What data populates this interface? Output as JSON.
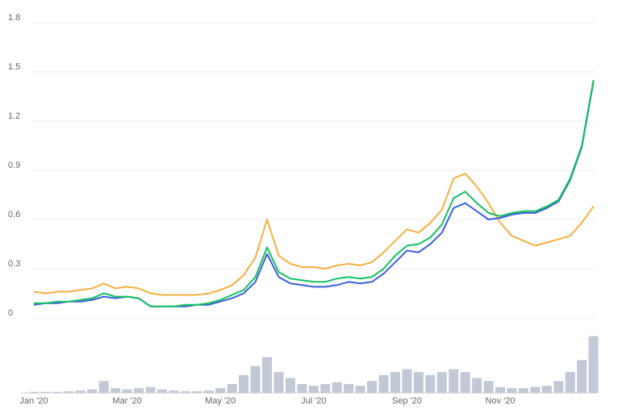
{
  "chart_data": {
    "type": "line",
    "categories": [
      "Jan '20",
      null,
      null,
      null,
      null,
      null,
      null,
      null,
      "Mar '20",
      null,
      null,
      null,
      null,
      null,
      null,
      null,
      "May '20",
      null,
      null,
      null,
      null,
      null,
      null,
      null,
      "Jul '20",
      null,
      null,
      null,
      null,
      null,
      null,
      null,
      "Sep '20",
      null,
      null,
      null,
      null,
      null,
      null,
      null,
      "Nov '20",
      null,
      null,
      null,
      null,
      null,
      null,
      null,
      null
    ],
    "series": [
      {
        "color": "#f5b041",
        "values": [
          0.16,
          0.15,
          0.16,
          0.16,
          0.17,
          0.18,
          0.21,
          0.18,
          0.19,
          0.18,
          0.15,
          0.14,
          0.14,
          0.14,
          0.14,
          0.15,
          0.17,
          0.2,
          0.26,
          0.37,
          0.6,
          0.38,
          0.33,
          0.31,
          0.31,
          0.3,
          0.32,
          0.33,
          0.32,
          0.34,
          0.4,
          0.47,
          0.54,
          0.52,
          0.58,
          0.66,
          0.85,
          0.88,
          0.8,
          0.7,
          0.58,
          0.5,
          0.47,
          0.44,
          0.46,
          0.48,
          0.5,
          0.58,
          0.68
        ]
      },
      {
        "color": "#3b5fe0",
        "values": [
          0.08,
          0.09,
          0.09,
          0.1,
          0.1,
          0.11,
          0.13,
          0.12,
          0.13,
          0.12,
          0.07,
          0.07,
          0.07,
          0.07,
          0.08,
          0.08,
          0.1,
          0.12,
          0.15,
          0.22,
          0.39,
          0.25,
          0.21,
          0.2,
          0.19,
          0.19,
          0.2,
          0.22,
          0.21,
          0.22,
          0.27,
          0.34,
          0.41,
          0.4,
          0.45,
          0.52,
          0.67,
          0.7,
          0.65,
          0.6,
          0.61,
          0.63,
          0.64,
          0.64,
          0.67,
          0.71,
          0.84,
          1.04,
          1.44
        ]
      },
      {
        "color": "#16c060",
        "values": [
          0.09,
          0.09,
          0.1,
          0.1,
          0.11,
          0.12,
          0.15,
          0.13,
          0.13,
          0.12,
          0.07,
          0.07,
          0.07,
          0.08,
          0.08,
          0.09,
          0.11,
          0.14,
          0.17,
          0.25,
          0.43,
          0.28,
          0.24,
          0.23,
          0.22,
          0.22,
          0.24,
          0.25,
          0.24,
          0.25,
          0.3,
          0.38,
          0.44,
          0.45,
          0.49,
          0.57,
          0.73,
          0.77,
          0.7,
          0.64,
          0.62,
          0.64,
          0.65,
          0.65,
          0.68,
          0.72,
          0.85,
          1.05,
          1.45
        ]
      }
    ],
    "volume": {
      "color": "#c3c8d6",
      "ylim": [
        0,
        100
      ],
      "values": [
        2,
        2,
        2,
        3,
        4,
        6,
        20,
        8,
        6,
        8,
        10,
        6,
        4,
        3,
        3,
        4,
        8,
        15,
        30,
        45,
        60,
        35,
        25,
        15,
        12,
        15,
        18,
        15,
        12,
        20,
        30,
        35,
        40,
        35,
        30,
        35,
        40,
        35,
        25,
        20,
        10,
        8,
        8,
        10,
        12,
        20,
        35,
        55,
        95
      ]
    },
    "ylim": [
      0,
      1.8
    ],
    "yticks": [
      0,
      0.3,
      0.6,
      0.9,
      1.2,
      1.5,
      1.8
    ],
    "grid": true
  }
}
